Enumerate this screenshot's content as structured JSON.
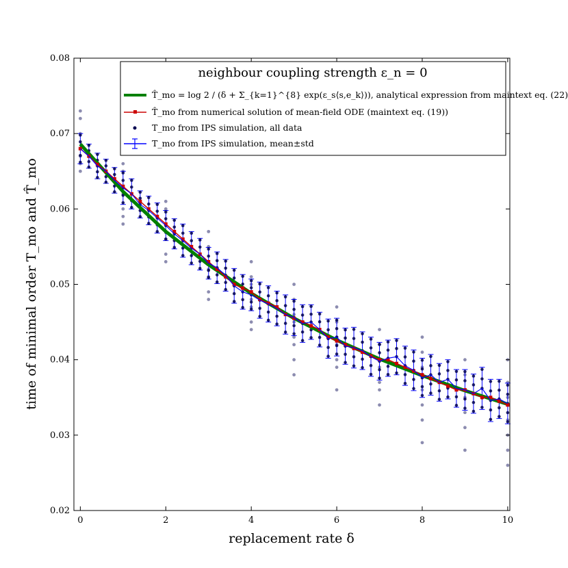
{
  "chart_data": {
    "type": "line",
    "title": "",
    "xlabel": "replacement rate δ",
    "ylabel": "time of minimal order T_mo and T̂_mo",
    "xlim": [
      -0.15,
      10.05
    ],
    "ylim": [
      0.02,
      0.08
    ],
    "xticks": [
      0,
      2,
      4,
      6,
      8,
      10
    ],
    "yticks": [
      0.02,
      0.03,
      0.04,
      0.05,
      0.06,
      0.07,
      0.08
    ],
    "xtick_labels": [
      "0",
      "2",
      "4",
      "6",
      "8",
      "10"
    ],
    "ytick_labels": [
      "0.02",
      "0.03",
      "0.04",
      "0.05",
      "0.06",
      "0.07",
      "0.08"
    ],
    "grid": false,
    "legend": {
      "title": "neighbour coupling strength ε_n = 0",
      "placement": "top-right",
      "entries": [
        {
          "label": "T̂_mo = log 2 / (δ + Σ_{k=1}^{8} exp(ε_s⟨s,e_k⟩)), analytical expression from maintext eq. (22)",
          "color": "#008000",
          "style": "thick-line"
        },
        {
          "label": "T̂_mo from numerical solution of mean-field ODE (maintext eq. (19))",
          "color": "#cc0000",
          "style": "line-square"
        },
        {
          "label": "T_mo from IPS simulation, all data",
          "color": "#000050",
          "style": "dot"
        },
        {
          "label": "T_mo from IPS simulation, mean±std",
          "color": "#0000ff",
          "style": "errorbar"
        }
      ]
    },
    "series": [
      {
        "name": "analytical",
        "color": "#008000",
        "x": [
          0,
          1,
          2,
          3,
          4,
          5,
          6,
          7,
          8,
          9,
          10
        ],
        "y": [
          0.0686,
          0.0623,
          0.057,
          0.0526,
          0.0488,
          0.0455,
          0.0426,
          0.0401,
          0.0379,
          0.0359,
          0.0341
        ]
      },
      {
        "name": "ODE",
        "color": "#cc0000",
        "x": [
          0,
          0.2,
          0.4,
          0.6,
          0.8,
          1.0,
          1.2,
          1.4,
          1.6,
          1.8,
          2.0,
          2.2,
          2.4,
          2.6,
          2.8,
          3.0,
          3.2,
          3.4,
          3.6,
          3.8,
          4.0,
          4.2,
          4.4,
          4.6,
          4.8,
          5.0,
          5.2,
          5.4,
          5.6,
          5.8,
          6.0,
          6.2,
          6.4,
          6.6,
          6.8,
          7.0,
          7.2,
          7.4,
          7.6,
          7.8,
          8.0,
          8.2,
          8.4,
          8.6,
          8.8,
          9.0,
          9.2,
          9.4,
          9.6,
          9.8,
          10.0
        ],
        "y": [
          0.068,
          0.067,
          0.0659,
          0.065,
          0.064,
          0.063,
          0.062,
          0.061,
          0.06,
          0.059,
          0.058,
          0.057,
          0.056,
          0.055,
          0.054,
          0.053,
          0.052,
          0.051,
          0.05,
          0.0495,
          0.049,
          0.048,
          0.0475,
          0.047,
          0.046,
          0.0455,
          0.045,
          0.0445,
          0.044,
          0.043,
          0.0425,
          0.042,
          0.0415,
          0.041,
          0.0405,
          0.04,
          0.04,
          0.0395,
          0.039,
          0.0385,
          0.038,
          0.0375,
          0.037,
          0.0365,
          0.036,
          0.036,
          0.0355,
          0.035,
          0.035,
          0.0345,
          0.034
        ]
      },
      {
        "name": "IPS mean±std",
        "color": "#0000ff",
        "x": [
          0,
          0.2,
          0.4,
          0.6,
          0.8,
          1.0,
          1.2,
          1.4,
          1.6,
          1.8,
          2.0,
          2.2,
          2.4,
          2.6,
          2.8,
          3.0,
          3.2,
          3.4,
          3.6,
          3.8,
          4.0,
          4.2,
          4.4,
          4.6,
          4.8,
          5.0,
          5.2,
          5.4,
          5.6,
          5.8,
          6.0,
          6.2,
          6.4,
          6.6,
          6.8,
          7.0,
          7.2,
          7.4,
          7.6,
          7.8,
          8.0,
          8.2,
          8.4,
          8.6,
          8.8,
          9.0,
          9.2,
          9.4,
          9.6,
          9.8,
          10.0
        ],
        "y": [
          0.068,
          0.067,
          0.0657,
          0.065,
          0.0638,
          0.0628,
          0.062,
          0.0606,
          0.0598,
          0.0588,
          0.0578,
          0.0567,
          0.0558,
          0.0548,
          0.054,
          0.0528,
          0.0522,
          0.0512,
          0.0498,
          0.049,
          0.0486,
          0.0479,
          0.0474,
          0.0468,
          0.046,
          0.0456,
          0.0448,
          0.045,
          0.044,
          0.0428,
          0.043,
          0.0418,
          0.0416,
          0.0412,
          0.0404,
          0.0398,
          0.0402,
          0.0404,
          0.0392,
          0.0386,
          0.0376,
          0.038,
          0.037,
          0.0374,
          0.0362,
          0.036,
          0.0355,
          0.0362,
          0.0346,
          0.0348,
          0.0342
        ],
        "std": [
          0.002,
          0.0016,
          0.0017,
          0.0016,
          0.0017,
          0.0022,
          0.002,
          0.0018,
          0.0019,
          0.002,
          0.002,
          0.002,
          0.0022,
          0.0022,
          0.0021,
          0.0021,
          0.0021,
          0.0021,
          0.0023,
          0.0023,
          0.0021,
          0.0024,
          0.0024,
          0.0023,
          0.0026,
          0.0024,
          0.0025,
          0.0023,
          0.0023,
          0.0026,
          0.0025,
          0.0024,
          0.0027,
          0.0025,
          0.0026,
          0.0025,
          0.0024,
          0.0024,
          0.0026,
          0.0027,
          0.0026,
          0.0027,
          0.0025,
          0.0026,
          0.0025,
          0.0027,
          0.0026,
          0.0028,
          0.0028,
          0.0026,
          0.0027
        ]
      }
    ],
    "scatter_all_data": {
      "name": "IPS all data",
      "color": "#000050",
      "x": [
        0,
        0,
        0,
        0,
        0,
        0,
        0,
        1,
        1,
        1,
        1,
        1,
        1,
        1,
        2,
        2,
        2,
        2,
        2,
        2,
        2,
        3,
        3,
        3,
        3,
        3,
        3,
        3,
        4,
        4,
        4,
        4,
        4,
        4,
        4,
        5,
        5,
        5,
        5,
        5,
        5,
        5,
        5,
        6,
        6,
        6,
        6,
        6,
        6,
        6,
        7,
        7,
        7,
        7,
        7,
        7,
        7,
        8,
        8,
        8,
        8,
        8,
        8,
        8,
        8,
        9,
        9,
        9,
        9,
        9,
        9,
        9,
        10,
        10,
        10,
        10,
        10,
        10,
        10,
        10
      ],
      "y": [
        0.073,
        0.072,
        0.07,
        0.068,
        0.066,
        0.065,
        0.067,
        0.066,
        0.065,
        0.063,
        0.062,
        0.06,
        0.059,
        0.058,
        0.061,
        0.06,
        0.058,
        0.057,
        0.056,
        0.054,
        0.053,
        0.057,
        0.055,
        0.053,
        0.052,
        0.051,
        0.049,
        0.048,
        0.053,
        0.051,
        0.05,
        0.048,
        0.047,
        0.045,
        0.044,
        0.05,
        0.048,
        0.046,
        0.045,
        0.043,
        0.042,
        0.04,
        0.038,
        0.047,
        0.045,
        0.043,
        0.042,
        0.04,
        0.039,
        0.036,
        0.044,
        0.042,
        0.04,
        0.039,
        0.037,
        0.036,
        0.034,
        0.043,
        0.041,
        0.039,
        0.038,
        0.036,
        0.034,
        0.032,
        0.029,
        0.04,
        0.038,
        0.036,
        0.035,
        0.033,
        0.031,
        0.028,
        0.04,
        0.037,
        0.035,
        0.034,
        0.032,
        0.03,
        0.028,
        0.026
      ]
    }
  }
}
